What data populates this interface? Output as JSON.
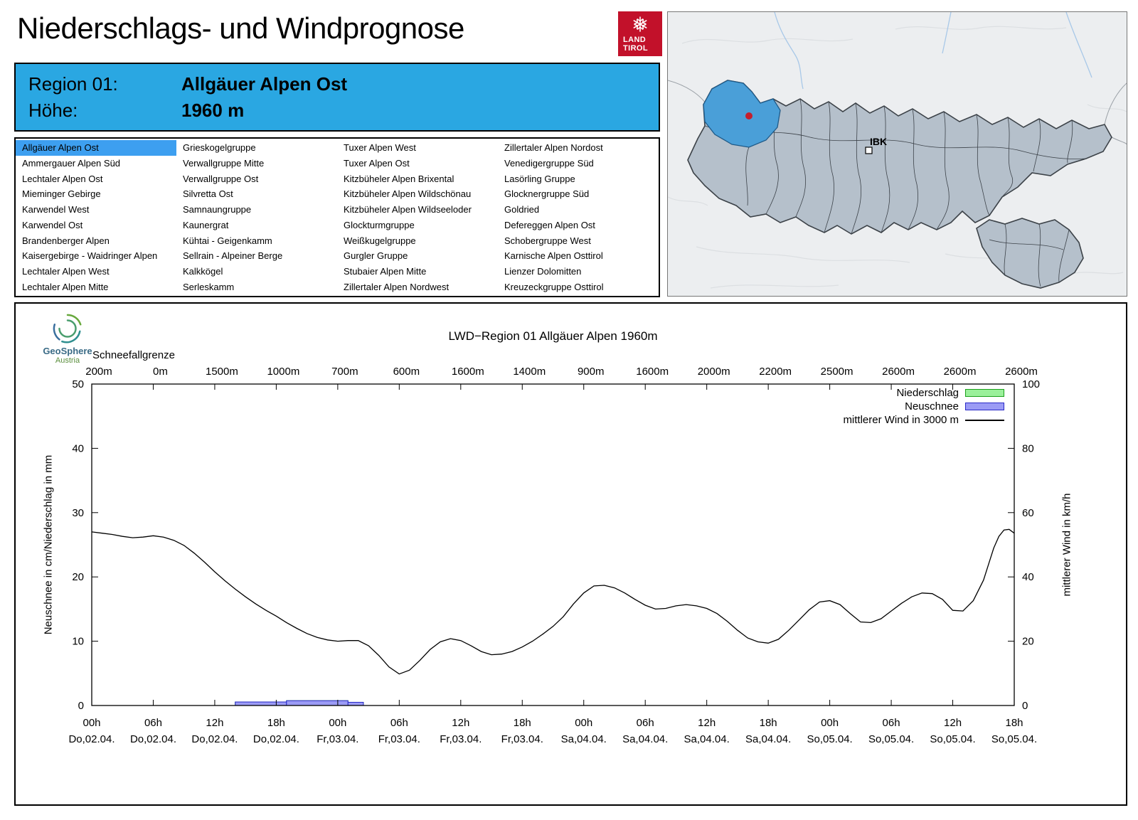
{
  "header": {
    "title": "Niederschlags- und Windprognose"
  },
  "logo": {
    "line1": "LAND",
    "line2": "TIROL",
    "color": "#c2112a"
  },
  "map": {
    "ibk_label": "IBK",
    "highlight_color": "#4a9fd8",
    "region_fill": "#b5c0cb",
    "marker_color": "#c41f2d"
  },
  "region_header": {
    "region_label": "Region 01:",
    "region_value": "Allgäuer Alpen Ost",
    "hoehe_label": "Höhe:",
    "hoehe_value": "1960 m",
    "bg": "#2aa7e2"
  },
  "region_list": {
    "selected": "Allgäuer Alpen Ost",
    "selected_bg": "#3d9ff0",
    "columns": [
      [
        "Allgäuer Alpen Ost",
        "Ammergauer Alpen Süd",
        "Lechtaler Alpen Ost",
        "Mieminger Gebirge",
        "Karwendel West",
        "Karwendel Ost",
        "Brandenberger Alpen",
        "Kaisergebirge - Waidringer Alpen",
        "Lechtaler Alpen West",
        "Lechtaler Alpen Mitte"
      ],
      [
        "Grieskogelgruppe",
        "Verwallgruppe Mitte",
        "Verwallgruppe Ost",
        "Silvretta Ost",
        "Samnaungruppe",
        "Kaunergrat",
        "Kühtai - Geigenkamm",
        "Sellrain - Alpeiner Berge",
        "Kalkkögel",
        "Serleskamm"
      ],
      [
        "Tuxer Alpen West",
        "Tuxer Alpen Ost",
        "Kitzbüheler Alpen Brixental",
        "Kitzbüheler Alpen Wildschönau",
        "Kitzbüheler Alpen Wildseeloder",
        "Glockturmgruppe",
        "Weißkugelgruppe",
        "Gurgler Gruppe",
        "Stubaier Alpen Mitte",
        "Zillertaler Alpen Nordwest"
      ],
      [
        "Zillertaler Alpen Nordost",
        "Venedigergruppe Süd",
        "Lasörling Gruppe",
        "Glocknergruppe Süd",
        "Goldried",
        "Defereggen Alpen Ost",
        "Schobergruppe West",
        "Karnische Alpen Osttirol",
        "Lienzer Dolomitten",
        "Kreuzeckgruppe Osttirol"
      ]
    ]
  },
  "geosphere": {
    "line1": "GeoSphere",
    "line2": "Austria"
  },
  "chart_data": {
    "type": "line+bar",
    "title": "LWD−Region 01 Allgäuer Alpen 1960m",
    "snowline_label": "Schneefallgrenze",
    "snowline_values": [
      "200m",
      "0m",
      "1500m",
      "1000m",
      "700m",
      "600m",
      "1600m",
      "1400m",
      "900m",
      "1600m",
      "2000m",
      "2200m",
      "2500m",
      "2600m",
      "2600m",
      "2600m"
    ],
    "x_tick_hours": [
      "00h",
      "06h",
      "12h",
      "18h",
      "00h",
      "06h",
      "12h",
      "18h",
      "00h",
      "06h",
      "12h",
      "18h",
      "00h",
      "06h",
      "12h",
      "18h"
    ],
    "x_tick_dates": [
      "Do,02.04.",
      "Do,02.04.",
      "Do,02.04.",
      "Do,02.04.",
      "Fr,03.04.",
      "Fr,03.04.",
      "Fr,03.04.",
      "Fr,03.04.",
      "Sa,04.04.",
      "Sa,04.04.",
      "Sa,04.04.",
      "Sa,04.04.",
      "So,05.04.",
      "So,05.04.",
      "So,05.04.",
      "So,05.04."
    ],
    "ylabel_left": "Neuschnee in cm/Niederschlag in mm",
    "ylabel_right": "mittlerer Wind in km/h",
    "yleft_ticks": [
      0,
      10,
      20,
      30,
      40,
      50
    ],
    "yright_ticks": [
      0,
      20,
      40,
      60,
      80,
      100
    ],
    "ylim_left": [
      0,
      50
    ],
    "ylim_right": [
      0,
      100
    ],
    "x_range_hours": [
      0,
      90
    ],
    "legend": [
      {
        "label": "Niederschlag",
        "type": "box",
        "fill": "#9bf09b",
        "stroke": "#1ca01c"
      },
      {
        "label": "Neuschnee",
        "type": "box",
        "fill": "#9b9bf5",
        "stroke": "#2929c8"
      },
      {
        "label": "mittlerer Wind in 3000 m",
        "type": "line",
        "stroke": "#000000"
      }
    ],
    "niederschlag_bars": [
      [
        14,
        19,
        0.55
      ],
      [
        19,
        25,
        0.75
      ],
      [
        25,
        26.5,
        0.5
      ]
    ],
    "neuschnee_bars": [
      [
        14,
        19,
        0.55
      ],
      [
        19,
        25,
        0.75
      ],
      [
        25,
        26.5,
        0.5
      ]
    ],
    "wind_points": [
      [
        0,
        54
      ],
      [
        1,
        53.6
      ],
      [
        2,
        53.2
      ],
      [
        3,
        52.6
      ],
      [
        4,
        52.2
      ],
      [
        5,
        52.4
      ],
      [
        6,
        52.8
      ],
      [
        7,
        52.4
      ],
      [
        8,
        51.4
      ],
      [
        9,
        49.8
      ],
      [
        10,
        47.4
      ],
      [
        11,
        44.6
      ],
      [
        12,
        41.6
      ],
      [
        13,
        38.8
      ],
      [
        14,
        36.2
      ],
      [
        15,
        33.8
      ],
      [
        16,
        31.6
      ],
      [
        17,
        29.6
      ],
      [
        18,
        27.8
      ],
      [
        19,
        25.8
      ],
      [
        20,
        24
      ],
      [
        21,
        22.4
      ],
      [
        22,
        21.2
      ],
      [
        23,
        20.4
      ],
      [
        24,
        20
      ],
      [
        25,
        20.2
      ],
      [
        26,
        20.2
      ],
      [
        27,
        18.6
      ],
      [
        28,
        15.6
      ],
      [
        29,
        12
      ],
      [
        30,
        9.8
      ],
      [
        31,
        11
      ],
      [
        32,
        14
      ],
      [
        33,
        17.4
      ],
      [
        34,
        19.8
      ],
      [
        35,
        20.8
      ],
      [
        36,
        20.2
      ],
      [
        37,
        18.6
      ],
      [
        38,
        16.8
      ],
      [
        39,
        15.8
      ],
      [
        40,
        16
      ],
      [
        41,
        16.8
      ],
      [
        42,
        18.2
      ],
      [
        43,
        20
      ],
      [
        44,
        22.2
      ],
      [
        45,
        24.6
      ],
      [
        46,
        27.6
      ],
      [
        47,
        31.6
      ],
      [
        48,
        35
      ],
      [
        49,
        37.2
      ],
      [
        50,
        37.4
      ],
      [
        51,
        36.6
      ],
      [
        52,
        35
      ],
      [
        53,
        33
      ],
      [
        54,
        31.2
      ],
      [
        55,
        30
      ],
      [
        56,
        30.2
      ],
      [
        57,
        31
      ],
      [
        58,
        31.4
      ],
      [
        59,
        31
      ],
      [
        60,
        30.2
      ],
      [
        61,
        28.6
      ],
      [
        62,
        26.2
      ],
      [
        63,
        23.4
      ],
      [
        64,
        21
      ],
      [
        65,
        19.8
      ],
      [
        66,
        19.4
      ],
      [
        67,
        20.6
      ],
      [
        68,
        23.4
      ],
      [
        69,
        26.6
      ],
      [
        70,
        29.8
      ],
      [
        71,
        32.2
      ],
      [
        72,
        32.6
      ],
      [
        73,
        31.4
      ],
      [
        74,
        28.6
      ],
      [
        75,
        26
      ],
      [
        76,
        25.8
      ],
      [
        77,
        27
      ],
      [
        78,
        29.4
      ],
      [
        79,
        31.8
      ],
      [
        80,
        33.8
      ],
      [
        81,
        35
      ],
      [
        82,
        34.8
      ],
      [
        83,
        33
      ],
      [
        84,
        29.6
      ],
      [
        85,
        29.4
      ],
      [
        86,
        32.6
      ],
      [
        87,
        39
      ],
      [
        87.5,
        44
      ],
      [
        88,
        49
      ],
      [
        88.5,
        52.6
      ],
      [
        89,
        54.6
      ],
      [
        89.5,
        54.8
      ],
      [
        90,
        53.6
      ]
    ]
  }
}
